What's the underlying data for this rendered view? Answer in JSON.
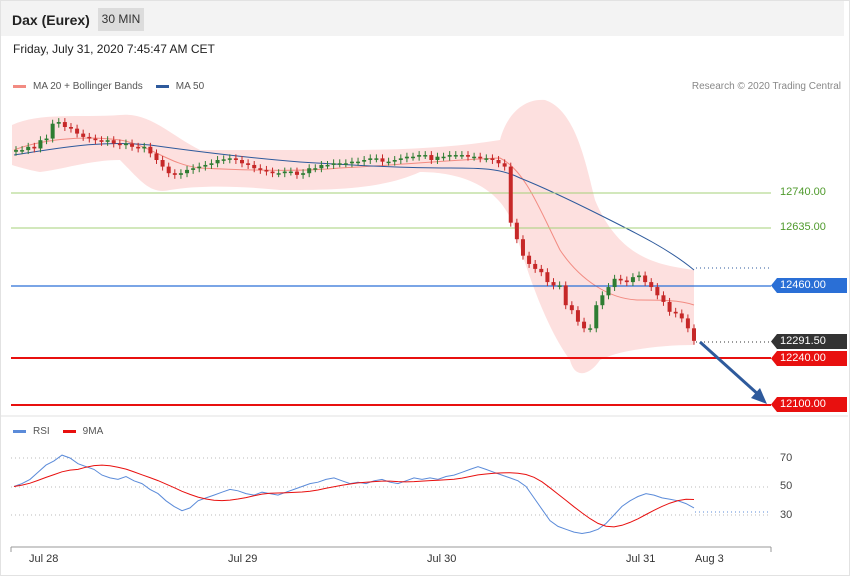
{
  "header": {
    "title": "Dax (Eurex)",
    "timeframe": "30 MIN"
  },
  "timestamp": "Friday, July 31, 2020 7:45:47 AM CET",
  "legend": {
    "main": [
      {
        "label": "MA 20 + Bollinger Bands",
        "color": "#f28b82"
      },
      {
        "label": "MA 50",
        "color": "#2e5a9c"
      }
    ],
    "rsi": [
      {
        "label": "RSI",
        "color": "#5b8bd9"
      },
      {
        "label": "9MA",
        "color": "#e8100f"
      }
    ]
  },
  "credit": "Research © 2020 Trading Central",
  "colors": {
    "up_candle": "#2e7d32",
    "down_candle": "#c62828",
    "band_fill": "#fde0df",
    "ma20": "#f28b82",
    "ma50": "#2e5a9c",
    "resistance": "#a5d07a",
    "pivot": "#2a6fd6",
    "support": "#e8100f",
    "current": "#333333",
    "arrow": "#2e5a9c"
  },
  "chart_data": [
    {
      "type": "candlestick",
      "ylim": [
        12060,
        13000
      ],
      "x_labels": [
        "Jul 28",
        "Jul 29",
        "Jul 30",
        "Jul 31",
        "Aug 3"
      ],
      "levels": [
        {
          "value": 12740,
          "label": "12740.00",
          "kind": "resistance"
        },
        {
          "value": 12635,
          "label": "12635.00",
          "kind": "resistance"
        },
        {
          "value": 12460,
          "label": "12460.00",
          "kind": "pivot"
        },
        {
          "value": 12291.5,
          "label": "12291.50",
          "kind": "current"
        },
        {
          "value": 12240,
          "label": "12240.00",
          "kind": "support"
        },
        {
          "value": 12100,
          "label": "12100.00",
          "kind": "support"
        }
      ],
      "series_note": "30-minute OHLC candles from Jul 28 to Jul 31, with MA 20, Bollinger Bands and MA 50 overlays; an arrow projects a move down toward 12100.",
      "close": [
        12870,
        12870,
        12880,
        12875,
        12900,
        12905,
        12950,
        12955,
        12940,
        12935,
        12920,
        12910,
        12905,
        12900,
        12895,
        12900,
        12890,
        12885,
        12890,
        12880,
        12875,
        12880,
        12860,
        12840,
        12820,
        12800,
        12795,
        12800,
        12810,
        12815,
        12820,
        12825,
        12830,
        12840,
        12842,
        12845,
        12840,
        12830,
        12825,
        12815,
        12810,
        12805,
        12800,
        12800,
        12805,
        12805,
        12795,
        12800,
        12815,
        12815,
        12825,
        12825,
        12830,
        12830,
        12830,
        12835,
        12835,
        12840,
        12845,
        12845,
        12835,
        12835,
        12840,
        12845,
        12850,
        12850,
        12855,
        12855,
        12840,
        12850,
        12850,
        12855,
        12855,
        12855,
        12850,
        12850,
        12845,
        12845,
        12840,
        12830,
        12820,
        12650,
        12600,
        12550,
        12525,
        12510,
        12500,
        12470,
        12460,
        12460,
        12400,
        12385,
        12350,
        12330,
        12330,
        12400,
        12430,
        12455,
        12480,
        12475,
        12470,
        12485,
        12490,
        12470,
        12455,
        12430,
        12410,
        12380,
        12375,
        12360,
        12330,
        12292
      ],
      "rsi": [
        50,
        52,
        55,
        60,
        65,
        68,
        72,
        70,
        66,
        64,
        62,
        58,
        56,
        55,
        57,
        54,
        52,
        48,
        45,
        40,
        36,
        33,
        35,
        40,
        42,
        44,
        46,
        48,
        47,
        45,
        44,
        46,
        45,
        44,
        46,
        48,
        50,
        52,
        53,
        55,
        56,
        54,
        52,
        53,
        52,
        54,
        55,
        53,
        52,
        54,
        56,
        55,
        56,
        55,
        57,
        58,
        60,
        62,
        64,
        62,
        60,
        58,
        56,
        54,
        50,
        42,
        34,
        26,
        22,
        20,
        18,
        17,
        18,
        20,
        24,
        30,
        36,
        40,
        43,
        45,
        44,
        42,
        41,
        40,
        38,
        35
      ],
      "rsi_levels": [
        70,
        50,
        30
      ]
    }
  ]
}
